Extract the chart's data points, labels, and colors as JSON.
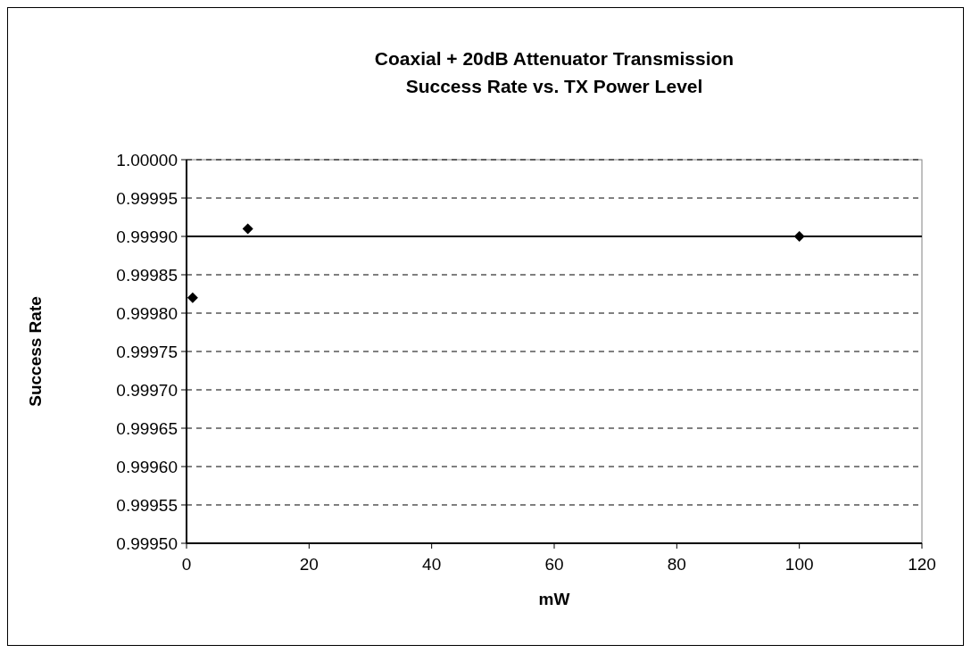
{
  "chart_data": {
    "type": "scatter",
    "title": "Coaxial + 20dB Attenuator Transmission\nSuccess Rate vs. TX Power Level",
    "xlabel": "mW",
    "ylabel": "Success Rate",
    "x": [
      1,
      10,
      100
    ],
    "values": [
      0.99982,
      0.99991,
      0.9999
    ],
    "color": "#000000",
    "marker": "diamond",
    "xlim": [
      0,
      120
    ],
    "xticks": [
      0,
      20,
      40,
      60,
      80,
      100,
      120
    ],
    "ylim": [
      0.9995,
      1
    ],
    "yticks": [
      {
        "value": 0.9995,
        "label": "0.99950"
      },
      {
        "value": 0.99955,
        "label": "0.99955"
      },
      {
        "value": 0.9996,
        "label": "0.99960"
      },
      {
        "value": 0.99965,
        "label": "0.99965"
      },
      {
        "value": 0.9997,
        "label": "0.99970"
      },
      {
        "value": 0.99975,
        "label": "0.99975"
      },
      {
        "value": 0.9998,
        "label": "0.99980"
      },
      {
        "value": 0.99985,
        "label": "0.99985"
      },
      {
        "value": 0.9999,
        "label": "0.99990"
      },
      {
        "value": 0.99995,
        "label": "0.99995"
      },
      {
        "value": 1,
        "label": "1.00000"
      }
    ],
    "grid": "y",
    "ref_lines": [
      {
        "axis": "y",
        "value": 0.9999,
        "color": "#000000",
        "line_style": "solid"
      }
    ]
  }
}
